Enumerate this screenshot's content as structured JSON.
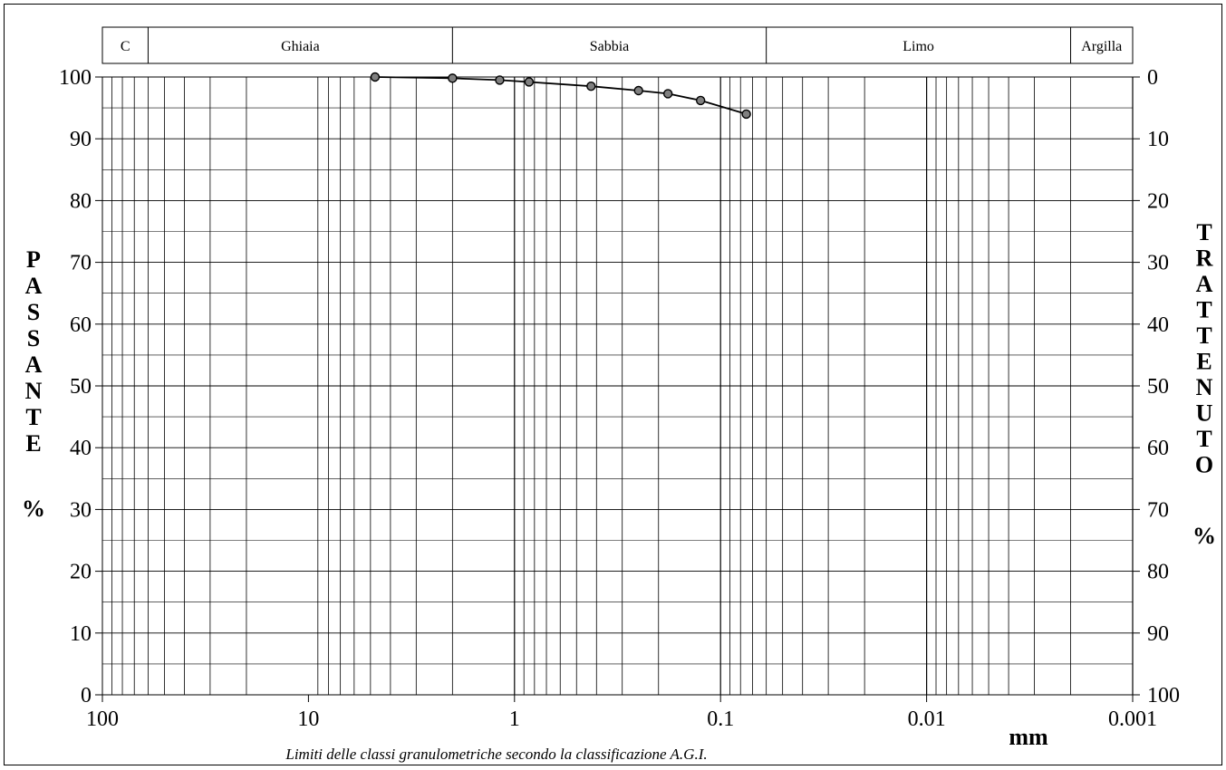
{
  "chart_data": {
    "type": "line",
    "x_scale": "log",
    "x_reversed": true,
    "xlim": [
      100,
      0.001
    ],
    "ylim": [
      0,
      100
    ],
    "x_tick_labels": [
      "100",
      "10",
      "1",
      "0.1",
      "0.01",
      "0.001"
    ],
    "y_tick_labels_left": [
      "0",
      "10",
      "20",
      "30",
      "40",
      "50",
      "60",
      "70",
      "80",
      "90",
      "100"
    ],
    "y_tick_labels_right": [
      "100",
      "90",
      "80",
      "70",
      "60",
      "50",
      "40",
      "30",
      "20",
      "10",
      "0"
    ],
    "ylabel_left": "PASSANTE",
    "ylabel_left_percent": "%",
    "ylabel_right": "TRATTENUTO",
    "ylabel_right_percent": "%",
    "xlabel": "mm",
    "note": "Limiti delle classi granulometriche secondo la classificazione A.G.I.",
    "grid": true,
    "classes": [
      {
        "label": "C",
        "from": 100,
        "to": 60
      },
      {
        "label": "Ghiaia",
        "from": 60,
        "to": 2
      },
      {
        "label": "Sabbia",
        "from": 2,
        "to": 0.06
      },
      {
        "label": "Limo",
        "from": 0.06,
        "to": 0.002
      },
      {
        "label": "Argilla",
        "from": 0.002,
        "to": 0.001
      }
    ],
    "series": [
      {
        "x": [
          4.75,
          2,
          1.18,
          0.85,
          0.425,
          0.25,
          0.18,
          0.125,
          0.075
        ],
        "y": [
          100,
          99.8,
          99.5,
          99.2,
          98.5,
          97.8,
          97.3,
          96.2,
          94
        ]
      }
    ]
  },
  "colors": {
    "line": "#000000",
    "marker_fill": "#808080",
    "grid": "#000000"
  }
}
